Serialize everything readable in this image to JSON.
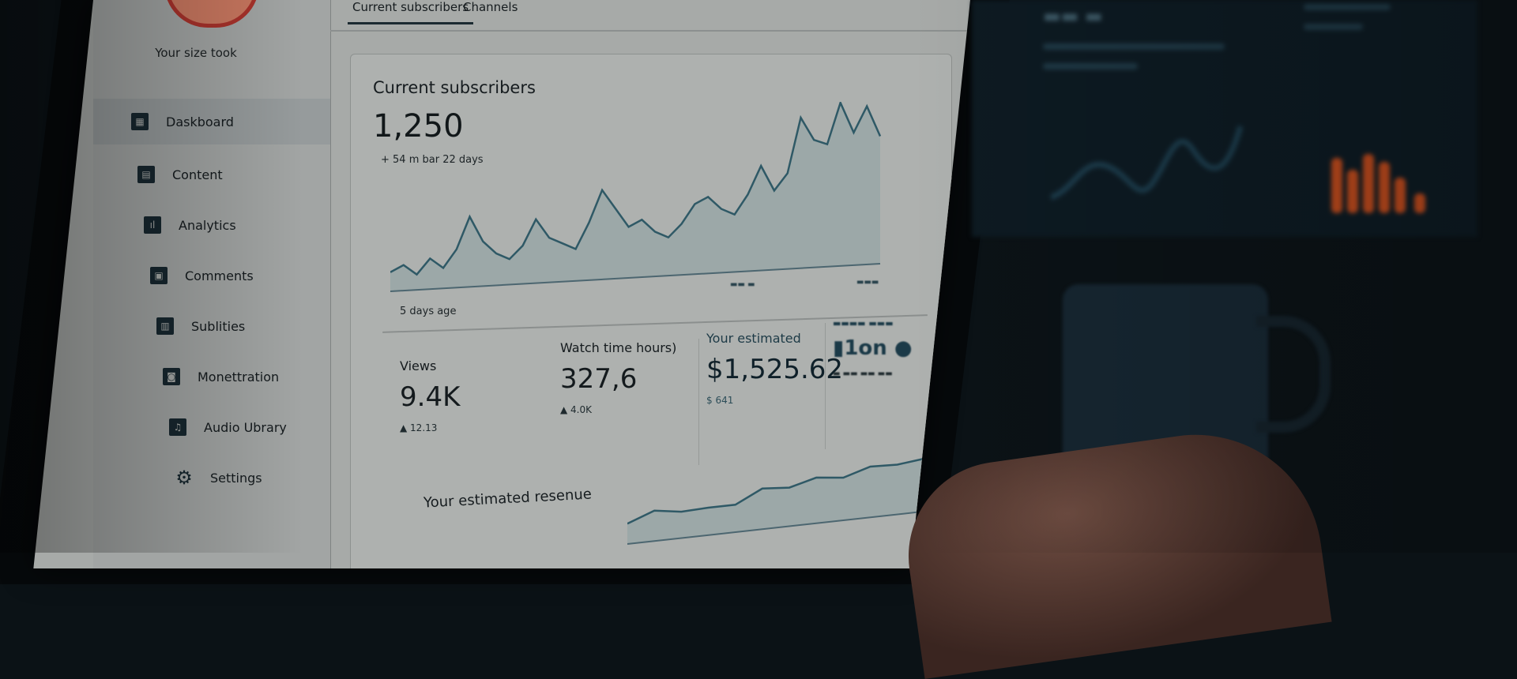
{
  "sidebar": {
    "profile_name": "Your size took",
    "items": [
      {
        "label": "Daskboard",
        "icon": "grid-icon",
        "active": true
      },
      {
        "label": "Content",
        "icon": "content-icon"
      },
      {
        "label": "Analytics",
        "icon": "analytics-icon"
      },
      {
        "label": "Comments",
        "icon": "comments-icon"
      },
      {
        "label": "Sublities",
        "icon": "subtitles-icon"
      },
      {
        "label": "Monettration",
        "icon": "monetization-icon"
      },
      {
        "label": "Audio Ubrary",
        "icon": "audio-library-icon"
      },
      {
        "label": "Settings",
        "icon": "gear-icon"
      }
    ]
  },
  "tabs": [
    {
      "label": "Current subscribers",
      "active": true
    },
    {
      "label": "Channels"
    }
  ],
  "subscribers": {
    "title": "Current subscribers",
    "value": "1,250",
    "subtext": "+ 54 m bar 22 days",
    "axis_start": "5 days age",
    "series": [
      15,
      20,
      12,
      24,
      16,
      30,
      55,
      35,
      25,
      20,
      30,
      50,
      35,
      30,
      25,
      45,
      70,
      55,
      40,
      45,
      35,
      30,
      40,
      55,
      60,
      50,
      45,
      60,
      82,
      62,
      75,
      118,
      100,
      96,
      128,
      104,
      124,
      100
    ]
  },
  "stats": [
    {
      "label": "Views",
      "value": "9.4K",
      "delta": "▲ 12.13"
    },
    {
      "label": "Watch time hours)",
      "value": "327,6",
      "delta": "▲ 4.0K"
    },
    {
      "label": "Your estimated",
      "value": "$1,525.62",
      "delta": "$ 641"
    },
    {
      "label": "",
      "value": "1on",
      "delta": ""
    }
  ],
  "revenue": {
    "label": "Your estimated resenue",
    "series": [
      20,
      30,
      26,
      27,
      27,
      40,
      38,
      45,
      42,
      50,
      49,
      52,
      64
    ]
  },
  "colors": {
    "line": "#2f5966",
    "fill": "#8fa2a4",
    "accent_orange": "#b9481c"
  }
}
